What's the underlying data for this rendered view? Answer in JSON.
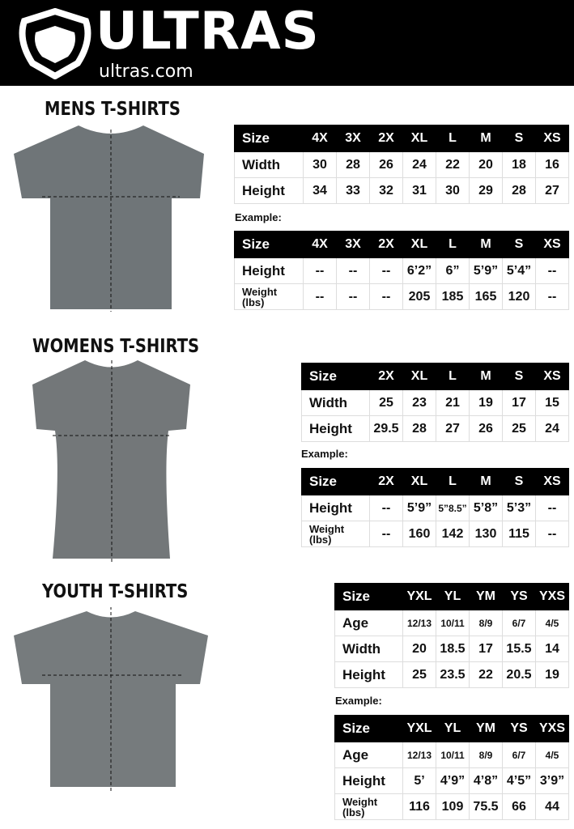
{
  "header": {
    "brand": "ULTRAS",
    "url": "ultras.com",
    "background": "#000000"
  },
  "sections": [
    {
      "title": "MENS T-SHIRTS",
      "example_label": "Example:",
      "size_table": {
        "header": [
          "Size",
          "4X",
          "3X",
          "2X",
          "XL",
          "L",
          "M",
          "S",
          "XS"
        ],
        "rows": [
          [
            "Width",
            "30",
            "28",
            "26",
            "24",
            "22",
            "20",
            "18",
            "16"
          ],
          [
            "Height",
            "34",
            "33",
            "32",
            "31",
            "30",
            "29",
            "28",
            "27"
          ]
        ]
      },
      "example_table": {
        "header": [
          "Size",
          "4X",
          "3X",
          "2X",
          "XL",
          "L",
          "M",
          "S",
          "XS"
        ],
        "rows": [
          [
            "Height",
            "--",
            "--",
            "--",
            "6’2”",
            "6”",
            "5’9”",
            "5’4”",
            "--"
          ],
          [
            "Weight (lbs)",
            "--",
            "--",
            "--",
            "205",
            "185",
            "165",
            "120",
            "--"
          ]
        ]
      }
    },
    {
      "title": "WOMENS T-SHIRTS",
      "example_label": "Example:",
      "size_table": {
        "header": [
          "Size",
          "2X",
          "XL",
          "L",
          "M",
          "S",
          "XS"
        ],
        "rows": [
          [
            "Width",
            "25",
            "23",
            "21",
            "19",
            "17",
            "15"
          ],
          [
            "Height",
            "29.5",
            "28",
            "27",
            "26",
            "25",
            "24"
          ]
        ]
      },
      "example_table": {
        "header": [
          "Size",
          "2X",
          "XL",
          "L",
          "M",
          "S",
          "XS"
        ],
        "rows": [
          [
            "Height",
            "--",
            "5’9”",
            "5”8.5”",
            "5’8”",
            "5’3”",
            "--"
          ],
          [
            "Weight (lbs)",
            "--",
            "160",
            "142",
            "130",
            "115",
            "--"
          ]
        ]
      }
    },
    {
      "title": "YOUTH T-SHIRTS",
      "example_label": "Example:",
      "size_table": {
        "header": [
          "Size",
          "YXL",
          "YL",
          "YM",
          "YS",
          "YXS"
        ],
        "rows": [
          [
            "Age",
            "12/13",
            "10/11",
            "8/9",
            "6/7",
            "4/5"
          ],
          [
            "Width",
            "20",
            "18.5",
            "17",
            "15.5",
            "14"
          ],
          [
            "Height",
            "25",
            "23.5",
            "22",
            "20.5",
            "19"
          ]
        ]
      },
      "example_table": {
        "header": [
          "Size",
          "YXL",
          "YL",
          "YM",
          "YS",
          "YXS"
        ],
        "rows": [
          [
            "Age",
            "12/13",
            "10/11",
            "8/9",
            "6/7",
            "4/5"
          ],
          [
            "Height",
            "5’",
            "4’9”",
            "4’8”",
            "4’5”",
            "3’9”"
          ],
          [
            "Weight (lbs)",
            "116",
            "109",
            "75.5",
            "66",
            "44"
          ]
        ]
      }
    }
  ],
  "shirt_color": "#6f7578"
}
